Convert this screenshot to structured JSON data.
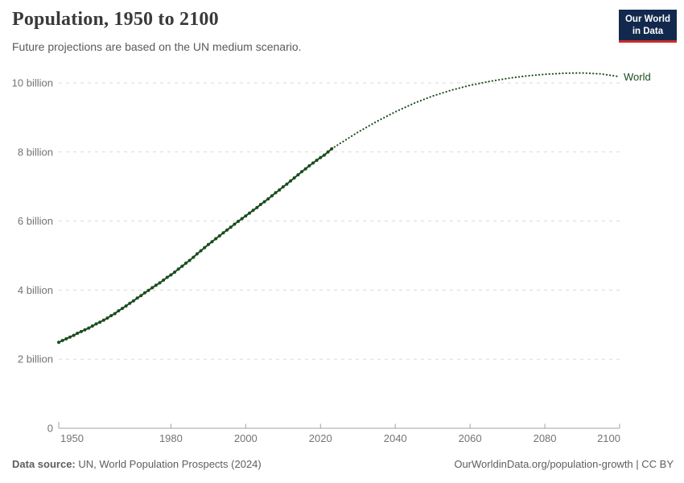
{
  "header": {
    "title": "Population, 1950 to 2100",
    "subtitle": "Future projections are based on the UN medium scenario.",
    "logo": {
      "line1": "Our World",
      "line2": "in Data",
      "bg_color": "#12294d",
      "accent_color": "#c82d28"
    }
  },
  "chart_data": {
    "type": "line",
    "title": "Population, 1950 to 2100",
    "xlabel": "",
    "ylabel": "",
    "xlim": [
      1950,
      2100
    ],
    "ylim": [
      0,
      10.45
    ],
    "grid": "dashed-horizontal",
    "legend_position": "end-of-line-label",
    "end_label": "World",
    "x_ticks": [
      1950,
      1980,
      2000,
      2020,
      2040,
      2060,
      2080,
      2100
    ],
    "y_ticks": [
      {
        "value": 0,
        "label": "0"
      },
      {
        "value": 2,
        "label": "2 billion"
      },
      {
        "value": 4,
        "label": "4 billion"
      },
      {
        "value": 6,
        "label": "6 billion"
      },
      {
        "value": 8,
        "label": "8 billion"
      },
      {
        "value": 10,
        "label": "10 billion"
      }
    ],
    "series": [
      {
        "name": "World (estimates)",
        "style": "solid-with-markers",
        "color": "#1a4d1e",
        "unit": "billion",
        "x_start": 1950,
        "x_step": 1,
        "values": [
          2.49,
          2.54,
          2.59,
          2.64,
          2.69,
          2.75,
          2.8,
          2.85,
          2.9,
          2.96,
          3.02,
          3.07,
          3.13,
          3.19,
          3.26,
          3.32,
          3.4,
          3.47,
          3.54,
          3.62,
          3.69,
          3.77,
          3.84,
          3.92,
          3.99,
          4.07,
          4.14,
          4.21,
          4.29,
          4.37,
          4.44,
          4.52,
          4.61,
          4.69,
          4.78,
          4.86,
          4.95,
          5.05,
          5.14,
          5.23,
          5.32,
          5.4,
          5.49,
          5.57,
          5.66,
          5.74,
          5.82,
          5.91,
          5.99,
          6.07,
          6.15,
          6.23,
          6.31,
          6.39,
          6.48,
          6.56,
          6.64,
          6.73,
          6.82,
          6.9,
          6.99,
          7.07,
          7.16,
          7.25,
          7.34,
          7.43,
          7.51,
          7.6,
          7.68,
          7.76,
          7.84,
          7.91,
          8.0,
          8.09
        ]
      },
      {
        "name": "World (UN medium projection)",
        "style": "dotted",
        "color": "#1a4d1e",
        "unit": "billion",
        "x": [
          2023,
          2025,
          2030,
          2035,
          2040,
          2045,
          2050,
          2055,
          2060,
          2065,
          2070,
          2075,
          2080,
          2085,
          2090,
          2095,
          2100
        ],
        "values": [
          8.09,
          8.23,
          8.57,
          8.88,
          9.16,
          9.41,
          9.62,
          9.79,
          9.93,
          10.04,
          10.13,
          10.2,
          10.25,
          10.28,
          10.29,
          10.26,
          10.18
        ]
      }
    ]
  },
  "footer": {
    "source_label": "Data source:",
    "source_text": " UN, World Population Prospects (2024)",
    "right_text": "OurWorldinData.org/population-growth | CC BY"
  }
}
